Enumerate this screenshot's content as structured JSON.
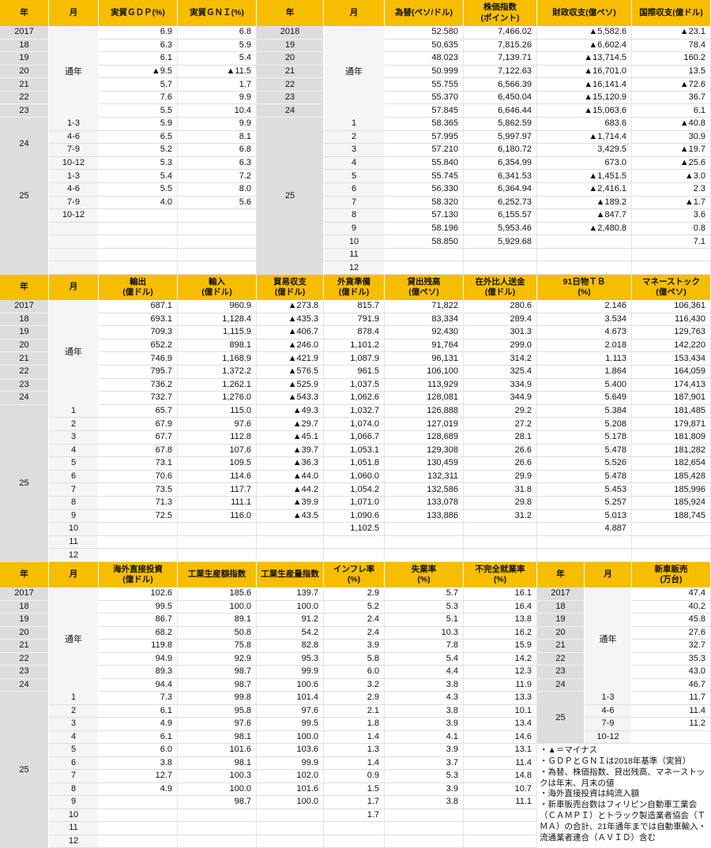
{
  "colors": {
    "header": "#f7bd00",
    "year_column": "#dcdede",
    "month_column": "#f4f6f6"
  },
  "table1": {
    "left": {
      "headers": [
        "年",
        "月",
        "実質ＧＤＰ(%)",
        "実質ＧＮＩ(%)"
      ],
      "annual_label": "通年",
      "annual": [
        {
          "year": "2017",
          "values": [
            "6.9",
            "6.8"
          ]
        },
        {
          "year": "18",
          "values": [
            "6.3",
            "5.9"
          ]
        },
        {
          "year": "19",
          "values": [
            "6.1",
            "5.4"
          ]
        },
        {
          "year": "20",
          "values": [
            "▲9.5",
            "▲11.5"
          ]
        },
        {
          "year": "21",
          "values": [
            "5.7",
            "1.7"
          ]
        },
        {
          "year": "22",
          "values": [
            "7.6",
            "9.9"
          ]
        },
        {
          "year": "23",
          "values": [
            "5.5",
            "10.4"
          ]
        }
      ],
      "groups": [
        {
          "year": "24",
          "rows": [
            {
              "period": "1-3",
              "values": [
                "5.9",
                "9.9"
              ]
            },
            {
              "period": "4-6",
              "values": [
                "6.5",
                "8.1"
              ]
            },
            {
              "period": "7-9",
              "values": [
                "5.2",
                "6.8"
              ]
            },
            {
              "period": "10-12",
              "values": [
                "5.3",
                "6.3"
              ]
            }
          ]
        },
        {
          "year": "25",
          "rows": [
            {
              "period": "1-3",
              "values": [
                "5.4",
                "7.2"
              ]
            },
            {
              "period": "4-6",
              "values": [
                "5.5",
                "8.0"
              ]
            },
            {
              "period": "7-9",
              "values": [
                "4.0",
                "5.6"
              ]
            },
            {
              "period": "10-12",
              "values": [
                "",
                ""
              ]
            }
          ]
        }
      ]
    },
    "right": {
      "headers": [
        "年",
        "月",
        "為替(ペソ/ドル)",
        "株価指数\n(ポイント)",
        "財政収支(億ペソ)",
        "国際収支(億ドル)"
      ],
      "annual_label": "通年",
      "annual": [
        {
          "year": "2018",
          "values": [
            "52.580",
            "7,466.02",
            "▲5,582.6",
            "▲23.1"
          ]
        },
        {
          "year": "19",
          "values": [
            "50.635",
            "7,815.26",
            "▲6,602.4",
            "78.4"
          ]
        },
        {
          "year": "20",
          "values": [
            "48.023",
            "7,139.71",
            "▲13,714.5",
            "160.2"
          ]
        },
        {
          "year": "21",
          "values": [
            "50.999",
            "7,122.63",
            "▲16,701.0",
            "13.5"
          ]
        },
        {
          "year": "22",
          "values": [
            "55.755",
            "6,566.39",
            "▲16,141.4",
            "▲72.6"
          ]
        },
        {
          "year": "23",
          "values": [
            "55.370",
            "6,450.04",
            "▲15,120.9",
            "36.7"
          ]
        },
        {
          "year": "24",
          "values": [
            "57.845",
            "6,646.44",
            "▲15,063.6",
            "6.1"
          ]
        }
      ],
      "groups": [
        {
          "year": "25",
          "rows": [
            {
              "period": "1",
              "values": [
                "58.365",
                "5,862.59",
                "683.6",
                "▲40.8"
              ]
            },
            {
              "period": "2",
              "values": [
                "57.995",
                "5,997.97",
                "▲1,714.4",
                "30.9"
              ]
            },
            {
              "period": "3",
              "values": [
                "57.210",
                "6,180.72",
                "3,429.5",
                "▲19.7"
              ]
            },
            {
              "period": "4",
              "values": [
                "55.840",
                "6,354.99",
                "673.0",
                "▲25.6"
              ]
            },
            {
              "period": "5",
              "values": [
                "55.745",
                "6,341.53",
                "▲1,451.5",
                "▲3.0"
              ]
            },
            {
              "period": "6",
              "values": [
                "56.330",
                "6,364.94",
                "▲2,416.1",
                "2.3"
              ]
            },
            {
              "period": "7",
              "values": [
                "58.320",
                "6,252.73",
                "▲189.2",
                "▲1.7"
              ]
            },
            {
              "period": "8",
              "values": [
                "57.130",
                "6,155.57",
                "▲847.7",
                "3.6"
              ]
            },
            {
              "period": "9",
              "values": [
                "58.196",
                "5,953.46",
                "▲2,480.8",
                "0.8"
              ]
            },
            {
              "period": "10",
              "values": [
                "58.850",
                "5,929.68",
                "",
                "7.1"
              ]
            },
            {
              "period": "11",
              "values": [
                "",
                "",
                "",
                ""
              ]
            },
            {
              "period": "12",
              "values": [
                "",
                "",
                "",
                ""
              ]
            }
          ]
        }
      ]
    }
  },
  "table2": {
    "left": {
      "headers": [
        "年",
        "月",
        "輸出\n(億ドル)",
        "輸入\n(億ドル)",
        "貿易収支\n(億ドル)",
        "外貨準備\n(億ドル)",
        "貸出残高\n(億ペソ)",
        "在外比人送金\n(億ドル)",
        "91日物ＴＢ\n(%)",
        "マネーストック\n(億ペソ)"
      ],
      "annual_label": "通年",
      "annual": [
        {
          "year": "2017",
          "values": [
            "687.1",
            "960.9",
            "▲273.8",
            "815.7",
            "71,822",
            "280.6",
            "2.146",
            "106,361"
          ]
        },
        {
          "year": "18",
          "values": [
            "693.1",
            "1,128.4",
            "▲435.3",
            "791.9",
            "83,334",
            "289.4",
            "3.534",
            "116,430"
          ]
        },
        {
          "year": "19",
          "values": [
            "709.3",
            "1,115.9",
            "▲406.7",
            "878.4",
            "92,430",
            "301.3",
            "4.673",
            "129,763"
          ]
        },
        {
          "year": "20",
          "values": [
            "652.2",
            "898.1",
            "▲246.0",
            "1,101.2",
            "91,764",
            "299.0",
            "2.018",
            "142,220"
          ]
        },
        {
          "year": "21",
          "values": [
            "746.9",
            "1,168.9",
            "▲421.9",
            "1,087.9",
            "96,131",
            "314.2",
            "1.113",
            "153,434"
          ]
        },
        {
          "year": "22",
          "values": [
            "795.7",
            "1,372.2",
            "▲576.5",
            "961.5",
            "106,100",
            "325.4",
            "1.864",
            "164,059"
          ]
        },
        {
          "year": "23",
          "values": [
            "736.2",
            "1,262.1",
            "▲525.9",
            "1,037.5",
            "113,929",
            "334.9",
            "5.400",
            "174,413"
          ]
        },
        {
          "year": "24",
          "values": [
            "732.7",
            "1,276.0",
            "▲543.3",
            "1,062.6",
            "128,081",
            "344.9",
            "5.649",
            "187,901"
          ]
        }
      ],
      "groups": [
        {
          "year": "25",
          "rows": [
            {
              "period": "1",
              "values": [
                "65.7",
                "115.0",
                "▲49.3",
                "1,032.7",
                "126,888",
                "29.2",
                "5.384",
                "181,485"
              ]
            },
            {
              "period": "2",
              "values": [
                "67.9",
                "97.6",
                "▲29.7",
                "1,074.0",
                "127,019",
                "27.2",
                "5.208",
                "179,871"
              ]
            },
            {
              "period": "3",
              "values": [
                "67.7",
                "112.8",
                "▲45.1",
                "1,066.7",
                "128,689",
                "28.1",
                "5.178",
                "181,809"
              ]
            },
            {
              "period": "4",
              "values": [
                "67.8",
                "107.6",
                "▲39.7",
                "1,053.1",
                "129,308",
                "26.6",
                "5.478",
                "181,282"
              ]
            },
            {
              "period": "5",
              "values": [
                "73.1",
                "109.5",
                "▲36.3",
                "1,051.8",
                "130,459",
                "26.6",
                "5.526",
                "182,654"
              ]
            },
            {
              "period": "6",
              "values": [
                "70.6",
                "114.6",
                "▲44.0",
                "1,060.0",
                "132,311",
                "29.9",
                "5.478",
                "185,428"
              ]
            },
            {
              "period": "7",
              "values": [
                "73.5",
                "117.7",
                "▲44.2",
                "1,054.2",
                "132,586",
                "31.8",
                "5.453",
                "185,996"
              ]
            },
            {
              "period": "8",
              "values": [
                "71.3",
                "111.1",
                "▲39.9",
                "1,071.0",
                "133,078",
                "29.8",
                "5.257",
                "185,924"
              ]
            },
            {
              "period": "9",
              "values": [
                "72.5",
                "116.0",
                "▲43.5",
                "1,090.6",
                "133,886",
                "31.2",
                "5.013",
                "188,745"
              ]
            },
            {
              "period": "10",
              "values": [
                "",
                "",
                "",
                "1,102.5",
                "",
                "",
                "4.887",
                ""
              ]
            },
            {
              "period": "11",
              "values": [
                "",
                "",
                "",
                "",
                "",
                "",
                "",
                ""
              ]
            },
            {
              "period": "12",
              "values": [
                "",
                "",
                "",
                "",
                "",
                "",
                "",
                ""
              ]
            }
          ]
        }
      ]
    }
  },
  "table3": {
    "left": {
      "headers": [
        "年",
        "月",
        "海外直接投資\n(億ドル)",
        "工業生産額指数",
        "工業生産量指数",
        "インフレ率\n(%)",
        "失業率\n(%)",
        "不完全就業率\n(%)"
      ],
      "annual_label": "通年",
      "annual": [
        {
          "year": "2017",
          "values": [
            "102.6",
            "185.6",
            "139.7",
            "2.9",
            "5.7",
            "16.1"
          ]
        },
        {
          "year": "18",
          "values": [
            "99.5",
            "100.0",
            "100.0",
            "5.2",
            "5.3",
            "16.4"
          ]
        },
        {
          "year": "19",
          "values": [
            "86.7",
            "89.1",
            "91.2",
            "2.4",
            "5.1",
            "13.8"
          ]
        },
        {
          "year": "20",
          "values": [
            "68.2",
            "50.8",
            "54.2",
            "2.4",
            "10.3",
            "16.2"
          ]
        },
        {
          "year": "21",
          "values": [
            "119.8",
            "75.8",
            "82.8",
            "3.9",
            "7.8",
            "15.9"
          ]
        },
        {
          "year": "22",
          "values": [
            "94.9",
            "92.9",
            "95.3",
            "5.8",
            "5.4",
            "14.2"
          ]
        },
        {
          "year": "23",
          "values": [
            "89.3",
            "98.7",
            "99.9",
            "6.0",
            "4.4",
            "12.3"
          ]
        },
        {
          "year": "24",
          "values": [
            "94.4",
            "98.7",
            "100.6",
            "3.2",
            "3.8",
            "11.9"
          ]
        }
      ],
      "groups": [
        {
          "year": "25",
          "rows": [
            {
              "period": "1",
              "values": [
                "7.3",
                "99.8",
                "101.4",
                "2.9",
                "4.3",
                "13.3"
              ]
            },
            {
              "period": "2",
              "values": [
                "6.1",
                "95.8",
                "97.6",
                "2.1",
                "3.8",
                "10.1"
              ]
            },
            {
              "period": "3",
              "values": [
                "4.9",
                "97.6",
                "99.5",
                "1.8",
                "3.9",
                "13.4"
              ]
            },
            {
              "period": "4",
              "values": [
                "6.1",
                "98.1",
                "100.0",
                "1.4",
                "4.1",
                "14.6"
              ]
            },
            {
              "period": "5",
              "values": [
                "6.0",
                "101.6",
                "103.6",
                "1.3",
                "3.9",
                "13.1"
              ]
            },
            {
              "period": "6",
              "values": [
                "3.8",
                "98.1",
                "99.9",
                "1.4",
                "3.7",
                "11.4"
              ]
            },
            {
              "period": "7",
              "values": [
                "12.7",
                "100.3",
                "102.0",
                "0.9",
                "5.3",
                "14.8"
              ]
            },
            {
              "period": "8",
              "values": [
                "4.9",
                "100.0",
                "101.6",
                "1.5",
                "3.9",
                "10.7"
              ]
            },
            {
              "period": "9",
              "values": [
                "",
                "98.7",
                "100.0",
                "1.7",
                "3.8",
                "11.1"
              ]
            },
            {
              "period": "10",
              "values": [
                "",
                "",
                "",
                "1.7",
                "",
                ""
              ]
            },
            {
              "period": "11",
              "values": [
                "",
                "",
                "",
                "",
                "",
                ""
              ]
            },
            {
              "period": "12",
              "values": [
                "",
                "",
                "",
                "",
                "",
                ""
              ]
            }
          ]
        }
      ]
    },
    "right": {
      "headers": [
        "年",
        "月",
        "新車販売\n(万台)"
      ],
      "annual_label": "通年",
      "annual": [
        {
          "year": "2017",
          "values": [
            "47.4"
          ]
        },
        {
          "year": "18",
          "values": [
            "40.2"
          ]
        },
        {
          "year": "19",
          "values": [
            "45.8"
          ]
        },
        {
          "year": "20",
          "values": [
            "27.6"
          ]
        },
        {
          "year": "21",
          "values": [
            "32.7"
          ]
        },
        {
          "year": "22",
          "values": [
            "35.3"
          ]
        },
        {
          "year": "23",
          "values": [
            "43.0"
          ]
        },
        {
          "year": "24",
          "values": [
            "46.7"
          ]
        }
      ],
      "groups": [
        {
          "year": "25",
          "rows": [
            {
              "period": "1-3",
              "values": [
                "11.7"
              ]
            },
            {
              "period": "4-6",
              "values": [
                "11.4"
              ]
            },
            {
              "period": "7-9",
              "values": [
                "11.2"
              ]
            },
            {
              "period": "10-12",
              "values": [
                ""
              ]
            }
          ]
        }
      ]
    },
    "notes": "・▲＝マイナス\n・ＧＤＰとＧＮＩは2018年基準（実質）\n・為替、株価指数、貸出残高、マネーストックは年末、月末の値\n・海外直接投資は純流入額\n・新車販売台数はフィリピン自動車工業会（ＣＡＭＰＩ）とトラック製造業者協会（ＴＭＡ）の合計、21年通年までは自動車輸入・流通業者連合（ＡＶＩＤ）含む"
  }
}
